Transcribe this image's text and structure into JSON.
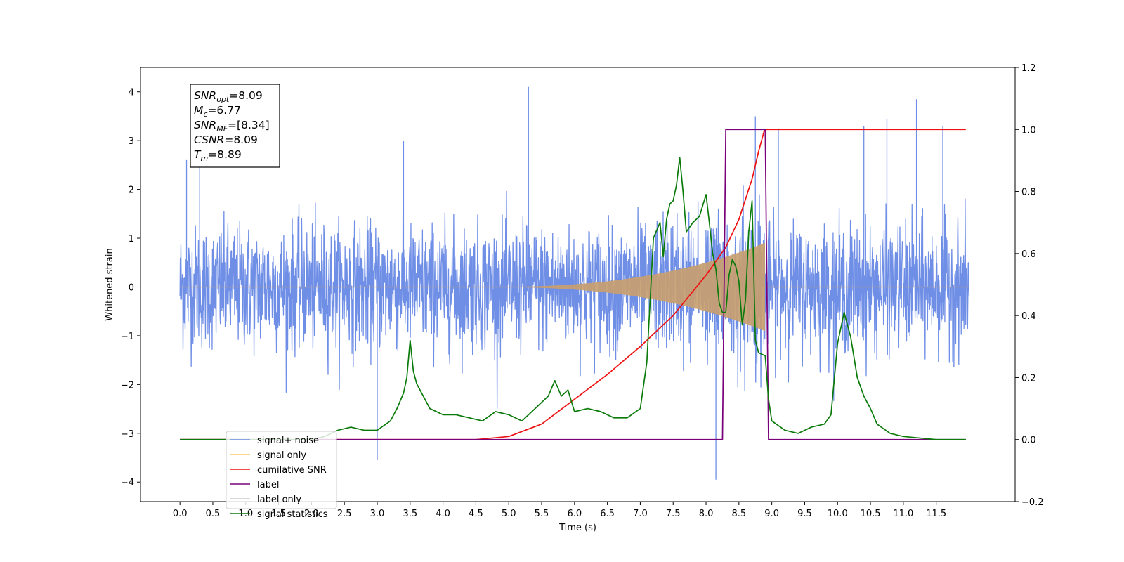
{
  "chart_data": {
    "type": "line",
    "xlabel": "Time (s)",
    "ylabel": "Whitened strain",
    "xlim": [
      -0.6,
      12.7
    ],
    "ylim": [
      -4.4,
      4.5
    ],
    "ylim_right": [
      -0.2,
      1.2
    ],
    "x_ticks": [
      "0.0",
      "0.5",
      "1.0",
      "1.5",
      "2.0",
      "2.5",
      "3.0",
      "3.5",
      "4.0",
      "4.5",
      "5.0",
      "5.5",
      "6.0",
      "6.5",
      "7.0",
      "7.5",
      "8.0",
      "8.5",
      "9.0",
      "9.5",
      "10.0",
      "10.5",
      "11.0",
      "11.5"
    ],
    "y_ticks": [
      "−4",
      "−3",
      "−2",
      "−1",
      "0",
      "1",
      "2",
      "3",
      "4"
    ],
    "y_ticks_right": [
      "−0.2",
      "0.0",
      "0.2",
      "0.4",
      "0.6",
      "0.8",
      "1.0",
      "1.2"
    ],
    "grid": false,
    "legend_position": "lower-left",
    "annotation": {
      "lines": [
        {
          "sym": "SNR",
          "sub": "opt",
          "eq": "=8.09"
        },
        {
          "sym": "M",
          "sub": "c",
          "eq": "=6.77"
        },
        {
          "sym": "SNR",
          "sub": "MF",
          "eq": "=[8.34]"
        },
        {
          "sym": "CSNR",
          "sub": "",
          "eq": "=8.09"
        },
        {
          "sym": "T",
          "sub": "m",
          "eq": "=8.89"
        }
      ]
    },
    "legend": [
      {
        "label": "signal+ noise",
        "color": "#6f8ee6"
      },
      {
        "label": "signal only",
        "color": "#ffc870"
      },
      {
        "label": "cumilative SNR",
        "color": "#ee1111"
      },
      {
        "label": "label",
        "color": "#7a007a"
      },
      {
        "label": "label only",
        "color": "#cccccc"
      },
      {
        "label": "signal statistics",
        "color": "#0a7a0a"
      }
    ],
    "series": [
      {
        "name": "signal+ noise",
        "axis": "left",
        "color": "#6f8ee6",
        "x_range": [
          0.0,
          12.0
        ],
        "typical_range": [
          -1.6,
          1.6
        ],
        "extreme_range": [
          -3.6,
          4.1
        ],
        "notable_peaks": [
          [
            0.1,
            2.6
          ],
          [
            0.3,
            3.2
          ],
          [
            3.0,
            -3.55
          ],
          [
            3.4,
            3.0
          ],
          [
            5.3,
            4.1
          ],
          [
            8.15,
            -3.95
          ],
          [
            8.75,
            3.5
          ],
          [
            10.4,
            3.3
          ],
          [
            10.75,
            3.45
          ],
          [
            11.2,
            3.85
          ],
          [
            11.6,
            3.3
          ],
          [
            9.1,
            3.25
          ]
        ]
      },
      {
        "name": "signal only",
        "axis": "left",
        "color": "#c8a070",
        "chirp_start": 4.5,
        "merger_time": 8.89,
        "peak_amplitude": 0.9
      },
      {
        "name": "cumilative SNR",
        "axis": "right",
        "color": "#ee1111",
        "x": [
          0.0,
          4.5,
          5.0,
          5.5,
          6.0,
          6.5,
          7.0,
          7.5,
          8.0,
          8.3,
          8.5,
          8.7,
          8.8,
          8.89,
          9.0,
          11.5,
          11.95
        ],
        "values": [
          0.0,
          0.0,
          0.01,
          0.05,
          0.13,
          0.21,
          0.3,
          0.4,
          0.53,
          0.62,
          0.71,
          0.84,
          0.93,
          1.0,
          1.0,
          1.0,
          1.0
        ]
      },
      {
        "name": "label",
        "axis": "right",
        "color": "#7a007a",
        "x": [
          0.0,
          8.25,
          8.3,
          8.9,
          8.95,
          11.95
        ],
        "values": [
          0.0,
          0.0,
          1.0,
          1.0,
          0.0,
          0.0
        ]
      },
      {
        "name": "signal statistics",
        "axis": "right",
        "color": "#0a7a0a",
        "x": [
          0.0,
          2.0,
          2.2,
          2.4,
          2.6,
          2.8,
          3.0,
          3.2,
          3.3,
          3.4,
          3.45,
          3.5,
          3.55,
          3.6,
          3.7,
          3.8,
          3.9,
          4.0,
          4.2,
          4.4,
          4.6,
          4.8,
          5.0,
          5.2,
          5.4,
          5.6,
          5.7,
          5.8,
          5.9,
          6.0,
          6.2,
          6.4,
          6.6,
          6.8,
          7.0,
          7.1,
          7.2,
          7.3,
          7.35,
          7.4,
          7.45,
          7.5,
          7.55,
          7.6,
          7.65,
          7.7,
          7.8,
          7.9,
          8.0,
          8.05,
          8.1,
          8.15,
          8.2,
          8.25,
          8.3,
          8.35,
          8.4,
          8.45,
          8.5,
          8.55,
          8.6,
          8.65,
          8.7,
          8.75,
          8.8,
          8.9,
          8.95,
          9.0,
          9.2,
          9.4,
          9.6,
          9.8,
          9.9,
          10.0,
          10.1,
          10.2,
          10.3,
          10.4,
          10.5,
          10.6,
          10.8,
          11.0,
          11.5,
          11.95
        ],
        "values": [
          0.0,
          0.0,
          0.01,
          0.03,
          0.04,
          0.03,
          0.03,
          0.06,
          0.1,
          0.15,
          0.2,
          0.32,
          0.22,
          0.18,
          0.14,
          0.1,
          0.09,
          0.08,
          0.08,
          0.07,
          0.06,
          0.09,
          0.08,
          0.06,
          0.1,
          0.14,
          0.19,
          0.14,
          0.16,
          0.09,
          0.1,
          0.09,
          0.07,
          0.07,
          0.1,
          0.25,
          0.65,
          0.7,
          0.59,
          0.71,
          0.76,
          0.77,
          0.82,
          0.91,
          0.8,
          0.67,
          0.7,
          0.72,
          0.79,
          0.7,
          0.6,
          0.55,
          0.44,
          0.41,
          0.41,
          0.53,
          0.58,
          0.56,
          0.51,
          0.37,
          0.45,
          0.67,
          0.77,
          0.32,
          0.28,
          0.27,
          0.13,
          0.06,
          0.03,
          0.02,
          0.04,
          0.05,
          0.08,
          0.31,
          0.41,
          0.33,
          0.2,
          0.14,
          0.1,
          0.05,
          0.02,
          0.01,
          0.0,
          0.0
        ]
      }
    ]
  }
}
